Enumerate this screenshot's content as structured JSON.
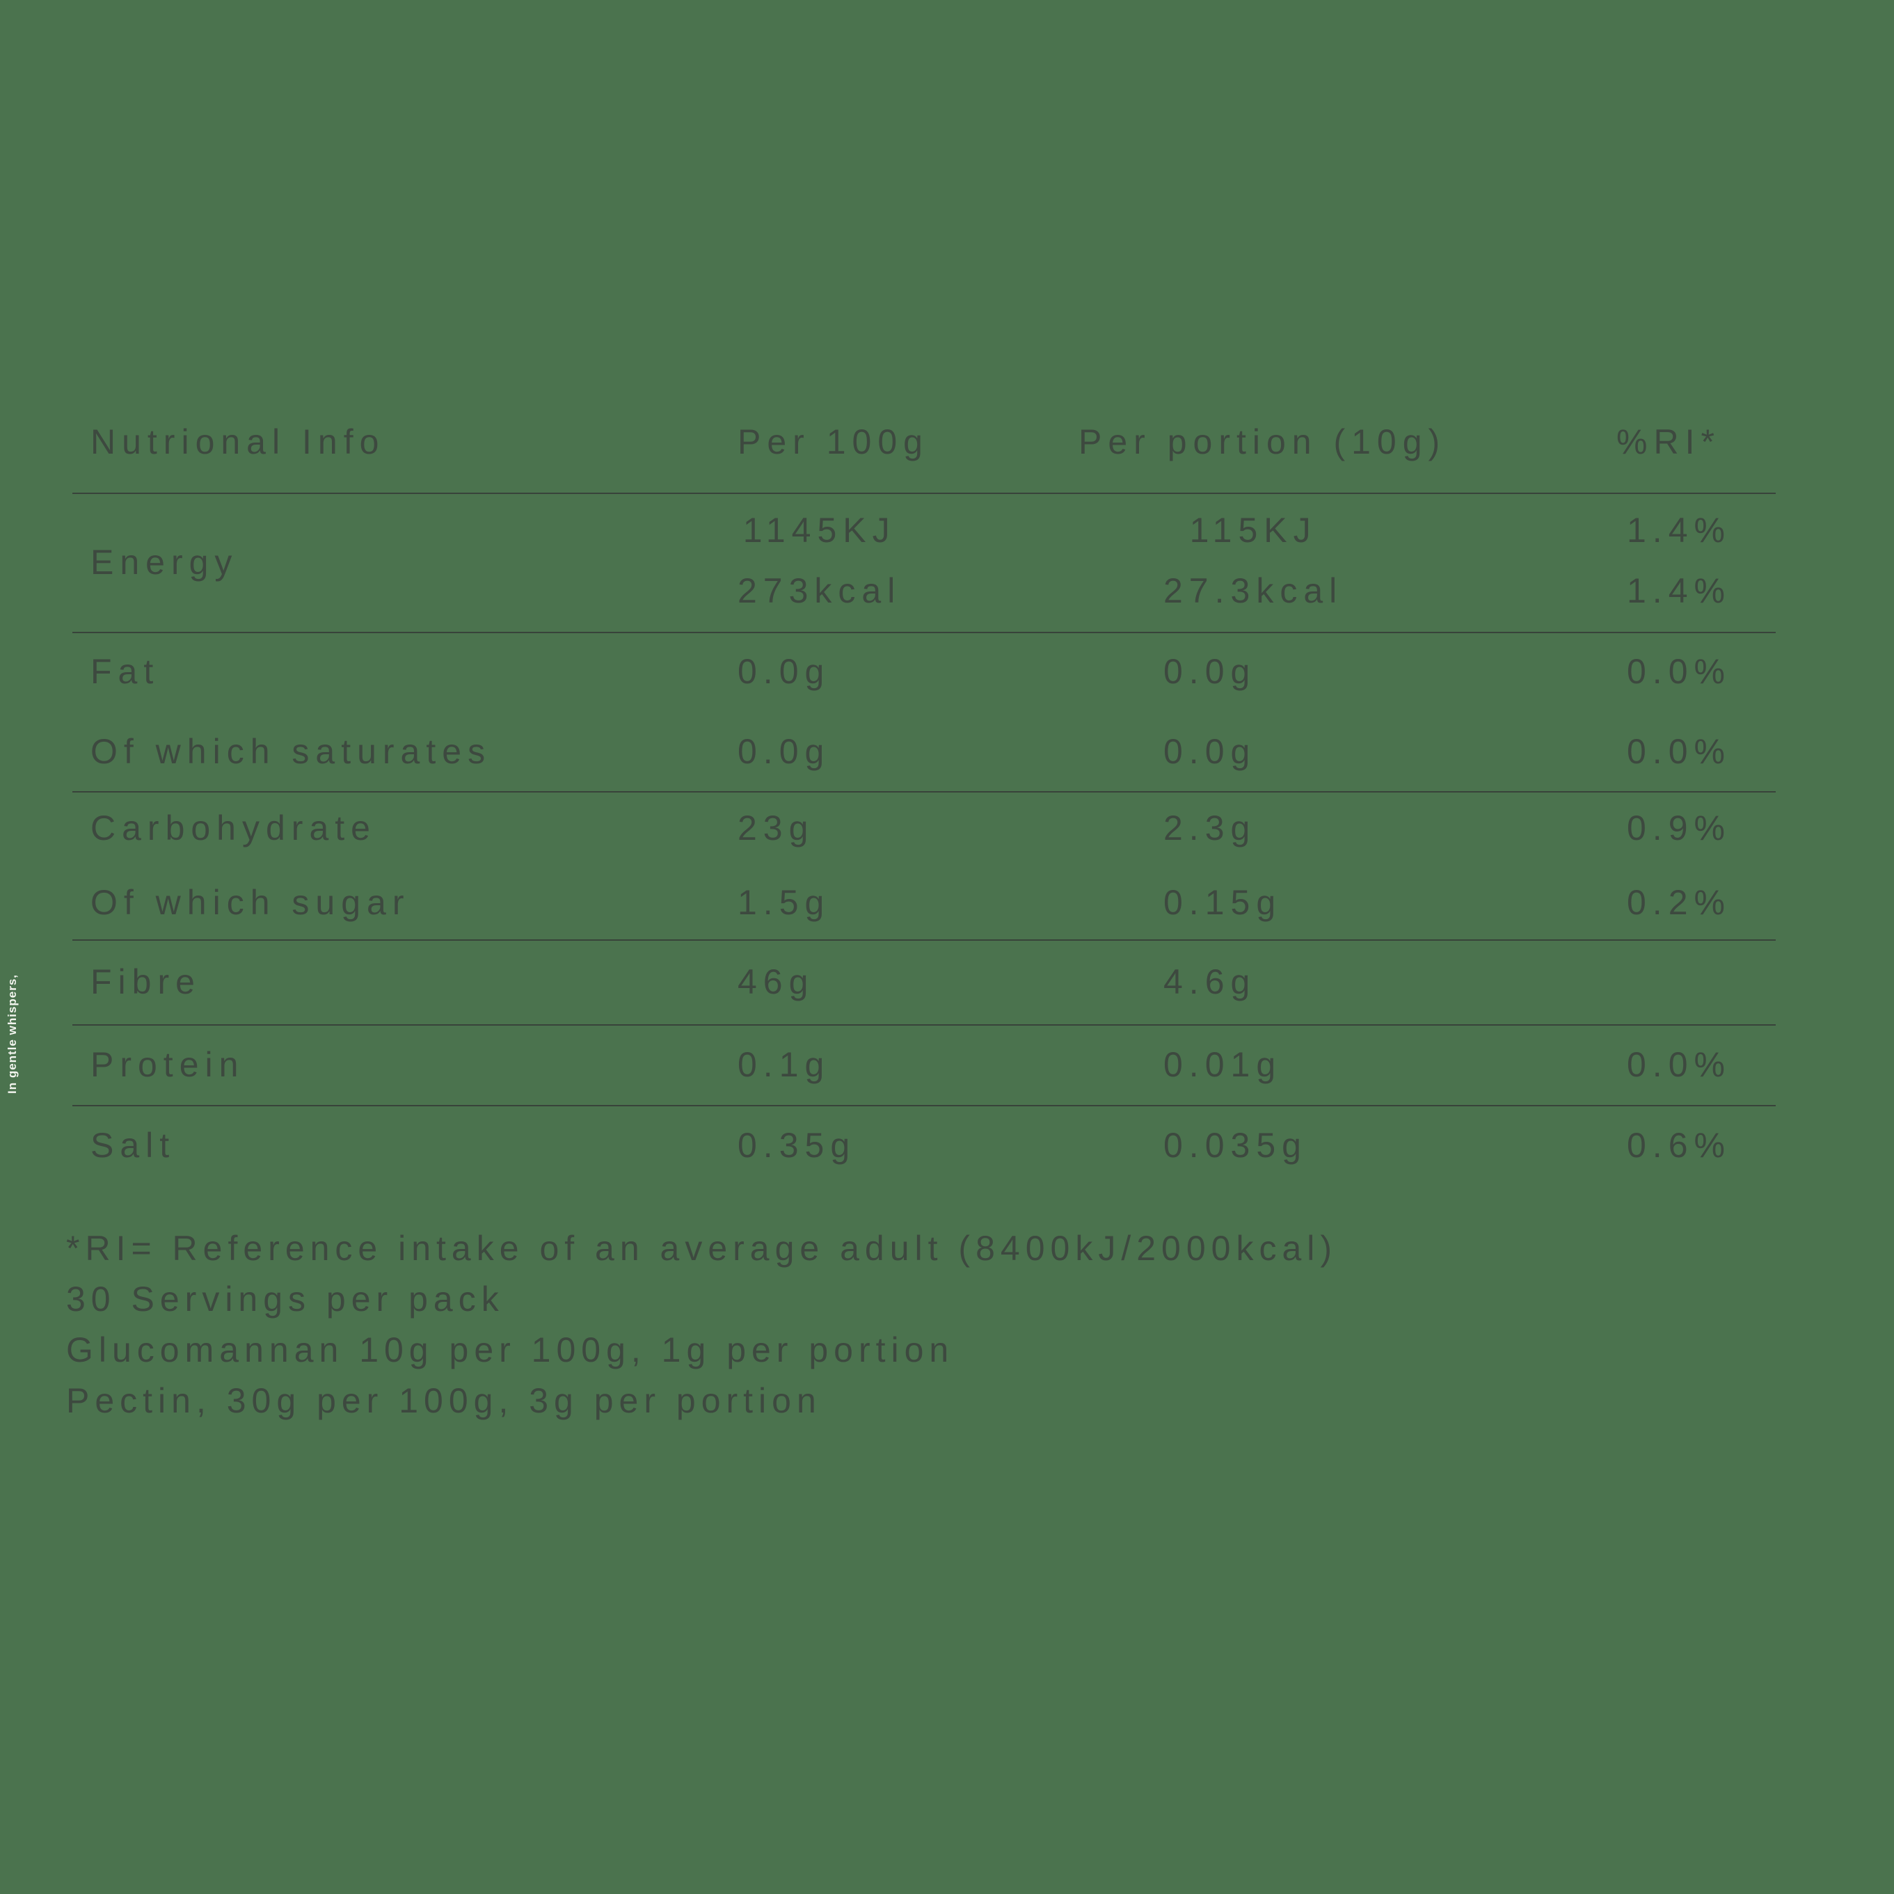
{
  "page": {
    "background_color": "#4b734e",
    "text_color": "#3d493f",
    "divider_color": "#38433a",
    "side_note_color": "#f2f4ee"
  },
  "side_note": "In gentle whispers,",
  "table": {
    "headers": {
      "info": "Nutrional Info",
      "per100": "Per 100g",
      "portion": "Per portion (10g)",
      "ri": "%RI*"
    },
    "rows": [
      {
        "label": "Energy",
        "per100": "1145KJ",
        "portion": "115KJ",
        "ri": "1.4%",
        "per100_2": "273kcal",
        "portion_2": "27.3kcal",
        "ri_2": "1.4%"
      },
      {
        "label": "Fat",
        "per100": "0.0g",
        "portion": "0.0g",
        "ri": "0.0%"
      },
      {
        "label": "Of which saturates",
        "per100": "0.0g",
        "portion": "0.0g",
        "ri": "0.0%"
      },
      {
        "label": "Carbohydrate",
        "per100": "23g",
        "portion": "2.3g",
        "ri": "0.9%"
      },
      {
        "label": "Of which sugar",
        "per100": "1.5g",
        "portion": "0.15g",
        "ri": "0.2%"
      },
      {
        "label": "Fibre",
        "per100": "46g",
        "portion": "4.6g",
        "ri": ""
      },
      {
        "label": "Protein",
        "per100": "0.1g",
        "portion": "0.01g",
        "ri": "0.0%"
      },
      {
        "label": "Salt",
        "per100": "0.35g",
        "portion": "0.035g",
        "ri": "0.6%"
      }
    ]
  },
  "footnotes": [
    "*RI= Reference intake of an average adult (8400kJ/2000kcal)",
    "30 Servings per pack",
    "Glucomannan 10g per 100g, 1g per portion",
    "Pectin, 30g per 100g, 3g per portion"
  ]
}
